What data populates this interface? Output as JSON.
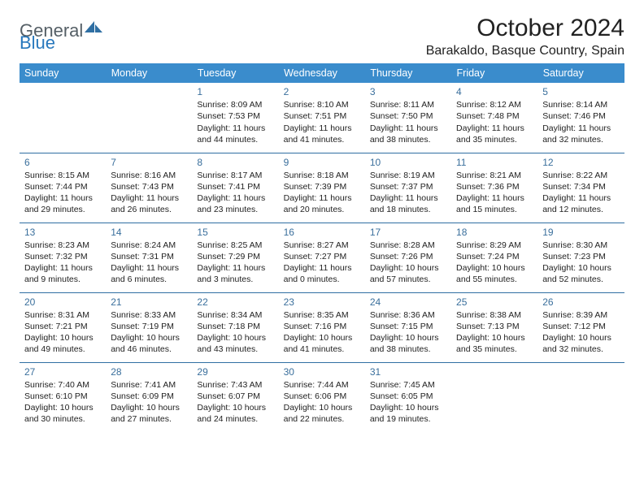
{
  "brand": {
    "part1": "General",
    "part2": "Blue"
  },
  "title": "October 2024",
  "location": "Barakaldo, Basque Country, Spain",
  "colors": {
    "header_bg": "#3a8ccc",
    "header_text": "#ffffff",
    "row_border": "#2f6fa3",
    "daynum_color": "#3a6f9c",
    "brand_gray": "#555f66",
    "brand_blue": "#2878bd",
    "body_text": "#222222",
    "page_bg": "#ffffff"
  },
  "day_headers": [
    "Sunday",
    "Monday",
    "Tuesday",
    "Wednesday",
    "Thursday",
    "Friday",
    "Saturday"
  ],
  "weeks": [
    [
      null,
      null,
      {
        "n": "1",
        "sr": "Sunrise: 8:09 AM",
        "ss": "Sunset: 7:53 PM",
        "dl": "Daylight: 11 hours and 44 minutes."
      },
      {
        "n": "2",
        "sr": "Sunrise: 8:10 AM",
        "ss": "Sunset: 7:51 PM",
        "dl": "Daylight: 11 hours and 41 minutes."
      },
      {
        "n": "3",
        "sr": "Sunrise: 8:11 AM",
        "ss": "Sunset: 7:50 PM",
        "dl": "Daylight: 11 hours and 38 minutes."
      },
      {
        "n": "4",
        "sr": "Sunrise: 8:12 AM",
        "ss": "Sunset: 7:48 PM",
        "dl": "Daylight: 11 hours and 35 minutes."
      },
      {
        "n": "5",
        "sr": "Sunrise: 8:14 AM",
        "ss": "Sunset: 7:46 PM",
        "dl": "Daylight: 11 hours and 32 minutes."
      }
    ],
    [
      {
        "n": "6",
        "sr": "Sunrise: 8:15 AM",
        "ss": "Sunset: 7:44 PM",
        "dl": "Daylight: 11 hours and 29 minutes."
      },
      {
        "n": "7",
        "sr": "Sunrise: 8:16 AM",
        "ss": "Sunset: 7:43 PM",
        "dl": "Daylight: 11 hours and 26 minutes."
      },
      {
        "n": "8",
        "sr": "Sunrise: 8:17 AM",
        "ss": "Sunset: 7:41 PM",
        "dl": "Daylight: 11 hours and 23 minutes."
      },
      {
        "n": "9",
        "sr": "Sunrise: 8:18 AM",
        "ss": "Sunset: 7:39 PM",
        "dl": "Daylight: 11 hours and 20 minutes."
      },
      {
        "n": "10",
        "sr": "Sunrise: 8:19 AM",
        "ss": "Sunset: 7:37 PM",
        "dl": "Daylight: 11 hours and 18 minutes."
      },
      {
        "n": "11",
        "sr": "Sunrise: 8:21 AM",
        "ss": "Sunset: 7:36 PM",
        "dl": "Daylight: 11 hours and 15 minutes."
      },
      {
        "n": "12",
        "sr": "Sunrise: 8:22 AM",
        "ss": "Sunset: 7:34 PM",
        "dl": "Daylight: 11 hours and 12 minutes."
      }
    ],
    [
      {
        "n": "13",
        "sr": "Sunrise: 8:23 AM",
        "ss": "Sunset: 7:32 PM",
        "dl": "Daylight: 11 hours and 9 minutes."
      },
      {
        "n": "14",
        "sr": "Sunrise: 8:24 AM",
        "ss": "Sunset: 7:31 PM",
        "dl": "Daylight: 11 hours and 6 minutes."
      },
      {
        "n": "15",
        "sr": "Sunrise: 8:25 AM",
        "ss": "Sunset: 7:29 PM",
        "dl": "Daylight: 11 hours and 3 minutes."
      },
      {
        "n": "16",
        "sr": "Sunrise: 8:27 AM",
        "ss": "Sunset: 7:27 PM",
        "dl": "Daylight: 11 hours and 0 minutes."
      },
      {
        "n": "17",
        "sr": "Sunrise: 8:28 AM",
        "ss": "Sunset: 7:26 PM",
        "dl": "Daylight: 10 hours and 57 minutes."
      },
      {
        "n": "18",
        "sr": "Sunrise: 8:29 AM",
        "ss": "Sunset: 7:24 PM",
        "dl": "Daylight: 10 hours and 55 minutes."
      },
      {
        "n": "19",
        "sr": "Sunrise: 8:30 AM",
        "ss": "Sunset: 7:23 PM",
        "dl": "Daylight: 10 hours and 52 minutes."
      }
    ],
    [
      {
        "n": "20",
        "sr": "Sunrise: 8:31 AM",
        "ss": "Sunset: 7:21 PM",
        "dl": "Daylight: 10 hours and 49 minutes."
      },
      {
        "n": "21",
        "sr": "Sunrise: 8:33 AM",
        "ss": "Sunset: 7:19 PM",
        "dl": "Daylight: 10 hours and 46 minutes."
      },
      {
        "n": "22",
        "sr": "Sunrise: 8:34 AM",
        "ss": "Sunset: 7:18 PM",
        "dl": "Daylight: 10 hours and 43 minutes."
      },
      {
        "n": "23",
        "sr": "Sunrise: 8:35 AM",
        "ss": "Sunset: 7:16 PM",
        "dl": "Daylight: 10 hours and 41 minutes."
      },
      {
        "n": "24",
        "sr": "Sunrise: 8:36 AM",
        "ss": "Sunset: 7:15 PM",
        "dl": "Daylight: 10 hours and 38 minutes."
      },
      {
        "n": "25",
        "sr": "Sunrise: 8:38 AM",
        "ss": "Sunset: 7:13 PM",
        "dl": "Daylight: 10 hours and 35 minutes."
      },
      {
        "n": "26",
        "sr": "Sunrise: 8:39 AM",
        "ss": "Sunset: 7:12 PM",
        "dl": "Daylight: 10 hours and 32 minutes."
      }
    ],
    [
      {
        "n": "27",
        "sr": "Sunrise: 7:40 AM",
        "ss": "Sunset: 6:10 PM",
        "dl": "Daylight: 10 hours and 30 minutes."
      },
      {
        "n": "28",
        "sr": "Sunrise: 7:41 AM",
        "ss": "Sunset: 6:09 PM",
        "dl": "Daylight: 10 hours and 27 minutes."
      },
      {
        "n": "29",
        "sr": "Sunrise: 7:43 AM",
        "ss": "Sunset: 6:07 PM",
        "dl": "Daylight: 10 hours and 24 minutes."
      },
      {
        "n": "30",
        "sr": "Sunrise: 7:44 AM",
        "ss": "Sunset: 6:06 PM",
        "dl": "Daylight: 10 hours and 22 minutes."
      },
      {
        "n": "31",
        "sr": "Sunrise: 7:45 AM",
        "ss": "Sunset: 6:05 PM",
        "dl": "Daylight: 10 hours and 19 minutes."
      },
      null,
      null
    ]
  ]
}
